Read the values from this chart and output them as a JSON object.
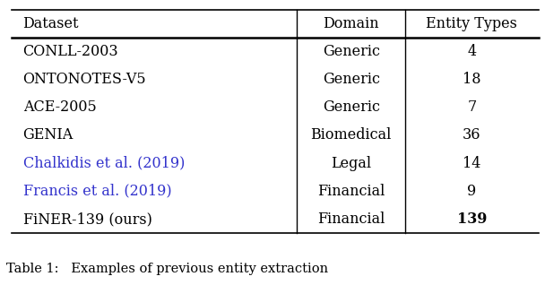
{
  "header": [
    "Dataset",
    "Domain",
    "Entity Types"
  ],
  "rows": [
    {
      "dataset": "CONLL-2003",
      "domain": "Generic",
      "types": "4",
      "color": "black",
      "bold_types": false
    },
    {
      "dataset": "ONTONOTES-V5",
      "domain": "Generic",
      "types": "18",
      "color": "black",
      "bold_types": false
    },
    {
      "dataset": "ACE-2005",
      "domain": "Generic",
      "types": "7",
      "color": "black",
      "bold_types": false
    },
    {
      "dataset": "GENIA",
      "domain": "Biomedical",
      "types": "36",
      "color": "black",
      "bold_types": false
    },
    {
      "dataset": "Chalkidis et al. (2019)",
      "domain": "Legal",
      "types": "14",
      "color": "#3333cc",
      "bold_types": false
    },
    {
      "dataset": "Francis et al. (2019)",
      "domain": "Financial",
      "types": "9",
      "color": "#3333cc",
      "bold_types": false
    },
    {
      "dataset": "FiNER-139 (ours)",
      "domain": "Financial",
      "types": "139",
      "color": "black",
      "bold_types": true
    }
  ],
  "caption": "Table 1:   Examples of previous entity extraction",
  "bg_color": "#ffffff",
  "font_size": 11.5,
  "header_font_size": 11.5,
  "caption_font_size": 10.5
}
